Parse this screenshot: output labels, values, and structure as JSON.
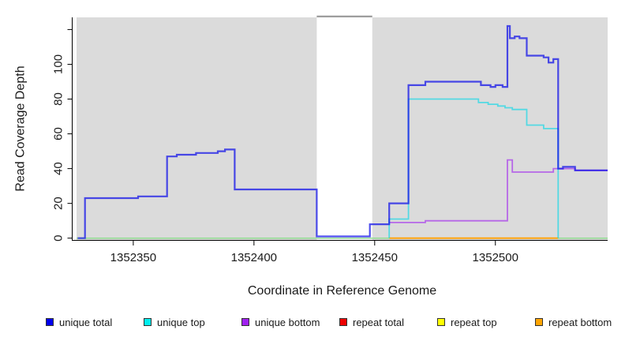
{
  "figure": {
    "background_color": "#ffffff",
    "panel_shade_color": "#dbdbdb",
    "gap_bar_color": "#9e9e9e",
    "axis_color": "#000000",
    "text_color": "#1a1a1a"
  },
  "chart_data": {
    "type": "line",
    "subtype": "step-coverage",
    "title": "",
    "xlabel": "Coordinate in Reference Genome",
    "ylabel": "Read Coverage Depth",
    "xlim": [
      1352326.5,
      1352546.5
    ],
    "ylim": [
      -1.5,
      127
    ],
    "grid": false,
    "xticks": [
      {
        "v": 1352350,
        "label": "1352350"
      },
      {
        "v": 1352400,
        "label": "1352400"
      },
      {
        "v": 1352450,
        "label": "1352450"
      },
      {
        "v": 1352500,
        "label": "1352500"
      }
    ],
    "yticks": [
      {
        "v": 0,
        "label": "0"
      },
      {
        "v": 20,
        "label": "20"
      },
      {
        "v": 40,
        "label": "40"
      },
      {
        "v": 60,
        "label": "60"
      },
      {
        "v": 80,
        "label": "80"
      },
      {
        "v": 100,
        "label": "100"
      },
      {
        "v": 120,
        "label": ""
      }
    ],
    "shaded_regions": [
      {
        "from": 1352326.5,
        "to": 1352426,
        "color": "#dbdbdb"
      },
      {
        "from": 1352449,
        "to": 1352546.5,
        "color": "#dbdbdb"
      }
    ],
    "gap_region": {
      "from": 1352426,
      "to": 1352449,
      "top_bar_color": "#9e9e9e"
    },
    "series": [
      {
        "name": "zero baseline",
        "color": "#8fd98f",
        "opacity": 1,
        "width": 1.5,
        "points": [
          [
            1352326.5,
            0
          ],
          [
            1352546.5,
            0
          ]
        ]
      },
      {
        "name": "repeat top",
        "color": "#f5f500",
        "opacity": 0.62,
        "width": 1.8,
        "points": []
      },
      {
        "name": "repeat total",
        "color": "#e00000",
        "opacity": 0.7,
        "width": 1.8,
        "points": []
      },
      {
        "name": "repeat bottom",
        "color": "#ff9e00",
        "opacity": 1,
        "width": 1.8,
        "points": [
          [
            1352456,
            0
          ],
          [
            1352526,
            0
          ]
        ]
      },
      {
        "name": "unique bottom",
        "color": "#a020f0",
        "opacity": 0.62,
        "width": 1.8,
        "points": [
          [
            1352456,
            9
          ],
          [
            1352471,
            10
          ],
          [
            1352505,
            45
          ],
          [
            1352507,
            38
          ],
          [
            1352524,
            40
          ],
          [
            1352526,
            40
          ],
          [
            1352533,
            39
          ],
          [
            1352546.5,
            39
          ]
        ]
      },
      {
        "name": "unique top",
        "color": "#00d8e8",
        "opacity": 0.62,
        "width": 1.8,
        "points": [
          [
            1352456,
            0
          ],
          [
            1352456,
            11
          ],
          [
            1352464,
            80
          ],
          [
            1352493,
            78
          ],
          [
            1352497,
            77
          ],
          [
            1352501,
            76
          ],
          [
            1352504,
            75
          ],
          [
            1352507,
            74
          ],
          [
            1352513,
            65
          ],
          [
            1352520,
            63
          ],
          [
            1352526,
            0
          ]
        ]
      },
      {
        "name": "unique total",
        "color": "#1414e8",
        "opacity": 0.75,
        "width": 2.2,
        "points": [
          [
            1352327,
            0
          ],
          [
            1352330,
            23
          ],
          [
            1352352,
            24
          ],
          [
            1352364,
            47
          ],
          [
            1352368,
            48
          ],
          [
            1352376,
            49
          ],
          [
            1352385,
            50
          ],
          [
            1352388,
            51
          ],
          [
            1352392,
            28
          ],
          [
            1352426,
            1
          ],
          [
            1352448,
            8
          ],
          [
            1352456,
            20
          ],
          [
            1352464,
            88
          ],
          [
            1352471,
            90
          ],
          [
            1352494,
            88
          ],
          [
            1352498,
            87
          ],
          [
            1352500,
            88
          ],
          [
            1352503,
            87
          ],
          [
            1352505,
            122
          ],
          [
            1352506,
            115
          ],
          [
            1352508,
            116
          ],
          [
            1352510,
            115
          ],
          [
            1352513,
            105
          ],
          [
            1352520,
            104
          ],
          [
            1352522,
            101
          ],
          [
            1352524,
            103
          ],
          [
            1352526,
            40
          ],
          [
            1352528,
            41
          ],
          [
            1352533,
            39
          ],
          [
            1352546.5,
            39
          ]
        ]
      }
    ]
  },
  "legend": {
    "items": [
      {
        "label": "unique total",
        "color": "#0000ee"
      },
      {
        "label": "unique top",
        "color": "#00eeee"
      },
      {
        "label": "unique bottom",
        "color": "#a020f0"
      },
      {
        "label": "repeat total",
        "color": "#ee0000"
      },
      {
        "label": "repeat top",
        "color": "#ffff00"
      },
      {
        "label": "repeat bottom",
        "color": "#ffa500"
      }
    ]
  }
}
